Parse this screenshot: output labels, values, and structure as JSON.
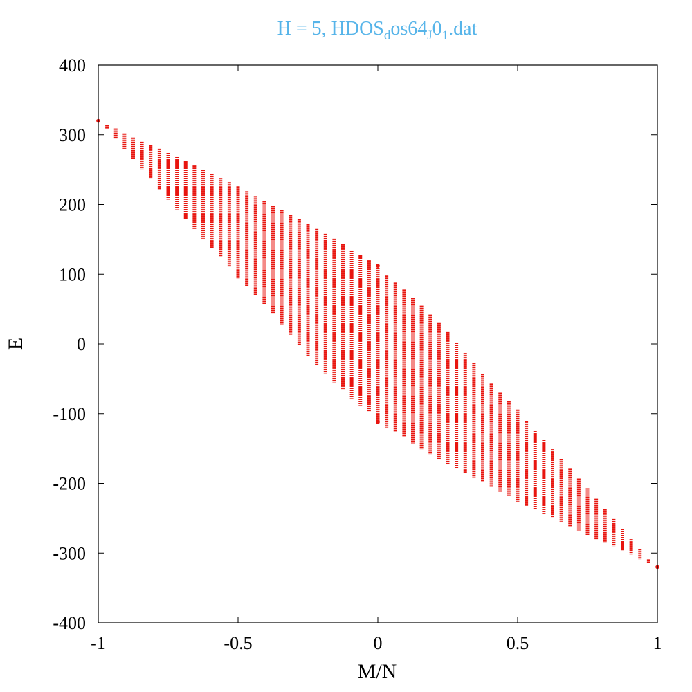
{
  "chart_data": {
    "type": "scatter",
    "title": "H = 5, HDOS",
    "title_sub1": "d",
    "title_mid": "os64",
    "title_sub2": "J",
    "title_mid2": "0",
    "title_sub3": "1",
    "title_end": ".dat",
    "title_color": "#56b4e9",
    "xlabel": "M/N",
    "ylabel": "E",
    "xlim": [
      -1,
      1
    ],
    "ylim": [
      -400,
      400
    ],
    "xticks": [
      -1,
      -0.5,
      0,
      0.5,
      1
    ],
    "yticks": [
      -400,
      -300,
      -200,
      -100,
      0,
      100,
      200,
      300,
      400
    ],
    "xtick_labels": [
      "-1",
      "-0.5",
      "0",
      "0.5",
      "1"
    ],
    "ytick_labels": [
      "-400",
      "-300",
      "-200",
      "-100",
      "0",
      "100",
      "200",
      "300",
      "400"
    ],
    "grid": false,
    "legend": "none",
    "marker_color": "#e8150f",
    "series": [
      {
        "columns": [
          {
            "x": -1.0,
            "ymin": 320,
            "ymax": 320
          },
          {
            "x": -0.96875,
            "ymin": 309,
            "ymax": 314
          },
          {
            "x": -0.9375,
            "ymin": 294,
            "ymax": 309
          },
          {
            "x": -0.90625,
            "ymin": 280,
            "ymax": 302
          },
          {
            "x": -0.875,
            "ymin": 265,
            "ymax": 296
          },
          {
            "x": -0.84375,
            "ymin": 251,
            "ymax": 290
          },
          {
            "x": -0.8125,
            "ymin": 237,
            "ymax": 285
          },
          {
            "x": -0.78125,
            "ymin": 222,
            "ymax": 280
          },
          {
            "x": -0.75,
            "ymin": 207,
            "ymax": 274
          },
          {
            "x": -0.71875,
            "ymin": 193,
            "ymax": 268
          },
          {
            "x": -0.6875,
            "ymin": 179,
            "ymax": 262
          },
          {
            "x": -0.65625,
            "ymin": 165,
            "ymax": 256
          },
          {
            "x": -0.625,
            "ymin": 151,
            "ymax": 250
          },
          {
            "x": -0.59375,
            "ymin": 138,
            "ymax": 244
          },
          {
            "x": -0.5625,
            "ymin": 125,
            "ymax": 238
          },
          {
            "x": -0.53125,
            "ymin": 111,
            "ymax": 232
          },
          {
            "x": -0.5,
            "ymin": 94,
            "ymax": 226
          },
          {
            "x": -0.46875,
            "ymin": 82,
            "ymax": 219
          },
          {
            "x": -0.4375,
            "ymin": 70,
            "ymax": 212
          },
          {
            "x": -0.40625,
            "ymin": 57,
            "ymax": 205
          },
          {
            "x": -0.375,
            "ymin": 43,
            "ymax": 198
          },
          {
            "x": -0.34375,
            "ymin": 27,
            "ymax": 192
          },
          {
            "x": -0.3125,
            "ymin": 13,
            "ymax": 185
          },
          {
            "x": -0.28125,
            "ymin": -2,
            "ymax": 179
          },
          {
            "x": -0.25,
            "ymin": -17,
            "ymax": 172
          },
          {
            "x": -0.21875,
            "ymin": -30,
            "ymax": 165
          },
          {
            "x": -0.1875,
            "ymin": -42,
            "ymax": 158
          },
          {
            "x": -0.15625,
            "ymin": -55,
            "ymax": 151
          },
          {
            "x": -0.125,
            "ymin": -66,
            "ymax": 143
          },
          {
            "x": -0.09375,
            "ymin": -78,
            "ymax": 134
          },
          {
            "x": -0.0625,
            "ymin": -88,
            "ymax": 127
          },
          {
            "x": -0.03125,
            "ymin": -98,
            "ymax": 120
          },
          {
            "x": 0.0,
            "ymin": -112,
            "ymax": 112
          },
          {
            "x": 0.03125,
            "ymin": -120,
            "ymax": 98
          },
          {
            "x": 0.0625,
            "ymin": -127,
            "ymax": 88
          },
          {
            "x": 0.09375,
            "ymin": -134,
            "ymax": 78
          },
          {
            "x": 0.125,
            "ymin": -143,
            "ymax": 66
          },
          {
            "x": 0.15625,
            "ymin": -151,
            "ymax": 55
          },
          {
            "x": 0.1875,
            "ymin": -158,
            "ymax": 42
          },
          {
            "x": 0.21875,
            "ymin": -165,
            "ymax": 30
          },
          {
            "x": 0.25,
            "ymin": -172,
            "ymax": 17
          },
          {
            "x": 0.28125,
            "ymin": -179,
            "ymax": 2
          },
          {
            "x": 0.3125,
            "ymin": -185,
            "ymax": -13
          },
          {
            "x": 0.34375,
            "ymin": -192,
            "ymax": -27
          },
          {
            "x": 0.375,
            "ymin": -198,
            "ymax": -43
          },
          {
            "x": 0.40625,
            "ymin": -205,
            "ymax": -57
          },
          {
            "x": 0.4375,
            "ymin": -212,
            "ymax": -70
          },
          {
            "x": 0.46875,
            "ymin": -219,
            "ymax": -82
          },
          {
            "x": 0.5,
            "ymin": -226,
            "ymax": -94
          },
          {
            "x": 0.53125,
            "ymin": -232,
            "ymax": -111
          },
          {
            "x": 0.5625,
            "ymin": -238,
            "ymax": -125
          },
          {
            "x": 0.59375,
            "ymin": -244,
            "ymax": -138
          },
          {
            "x": 0.625,
            "ymin": -250,
            "ymax": -151
          },
          {
            "x": 0.65625,
            "ymin": -256,
            "ymax": -165
          },
          {
            "x": 0.6875,
            "ymin": -262,
            "ymax": -179
          },
          {
            "x": 0.71875,
            "ymin": -268,
            "ymax": -193
          },
          {
            "x": 0.75,
            "ymin": -274,
            "ymax": -207
          },
          {
            "x": 0.78125,
            "ymin": -280,
            "ymax": -222
          },
          {
            "x": 0.8125,
            "ymin": -285,
            "ymax": -237
          },
          {
            "x": 0.84375,
            "ymin": -290,
            "ymax": -251
          },
          {
            "x": 0.875,
            "ymin": -296,
            "ymax": -265
          },
          {
            "x": 0.90625,
            "ymin": -302,
            "ymax": -280
          },
          {
            "x": 0.9375,
            "ymin": -309,
            "ymax": -294
          },
          {
            "x": 0.96875,
            "ymin": -314,
            "ymax": -309
          },
          {
            "x": 1.0,
            "ymin": -320,
            "ymax": -320
          }
        ],
        "markers": [
          {
            "x": -1.0,
            "y": 320
          },
          {
            "x": 0.0,
            "y": 112
          },
          {
            "x": 0.0,
            "y": -112
          },
          {
            "x": 1.0,
            "y": -320
          }
        ]
      }
    ]
  }
}
